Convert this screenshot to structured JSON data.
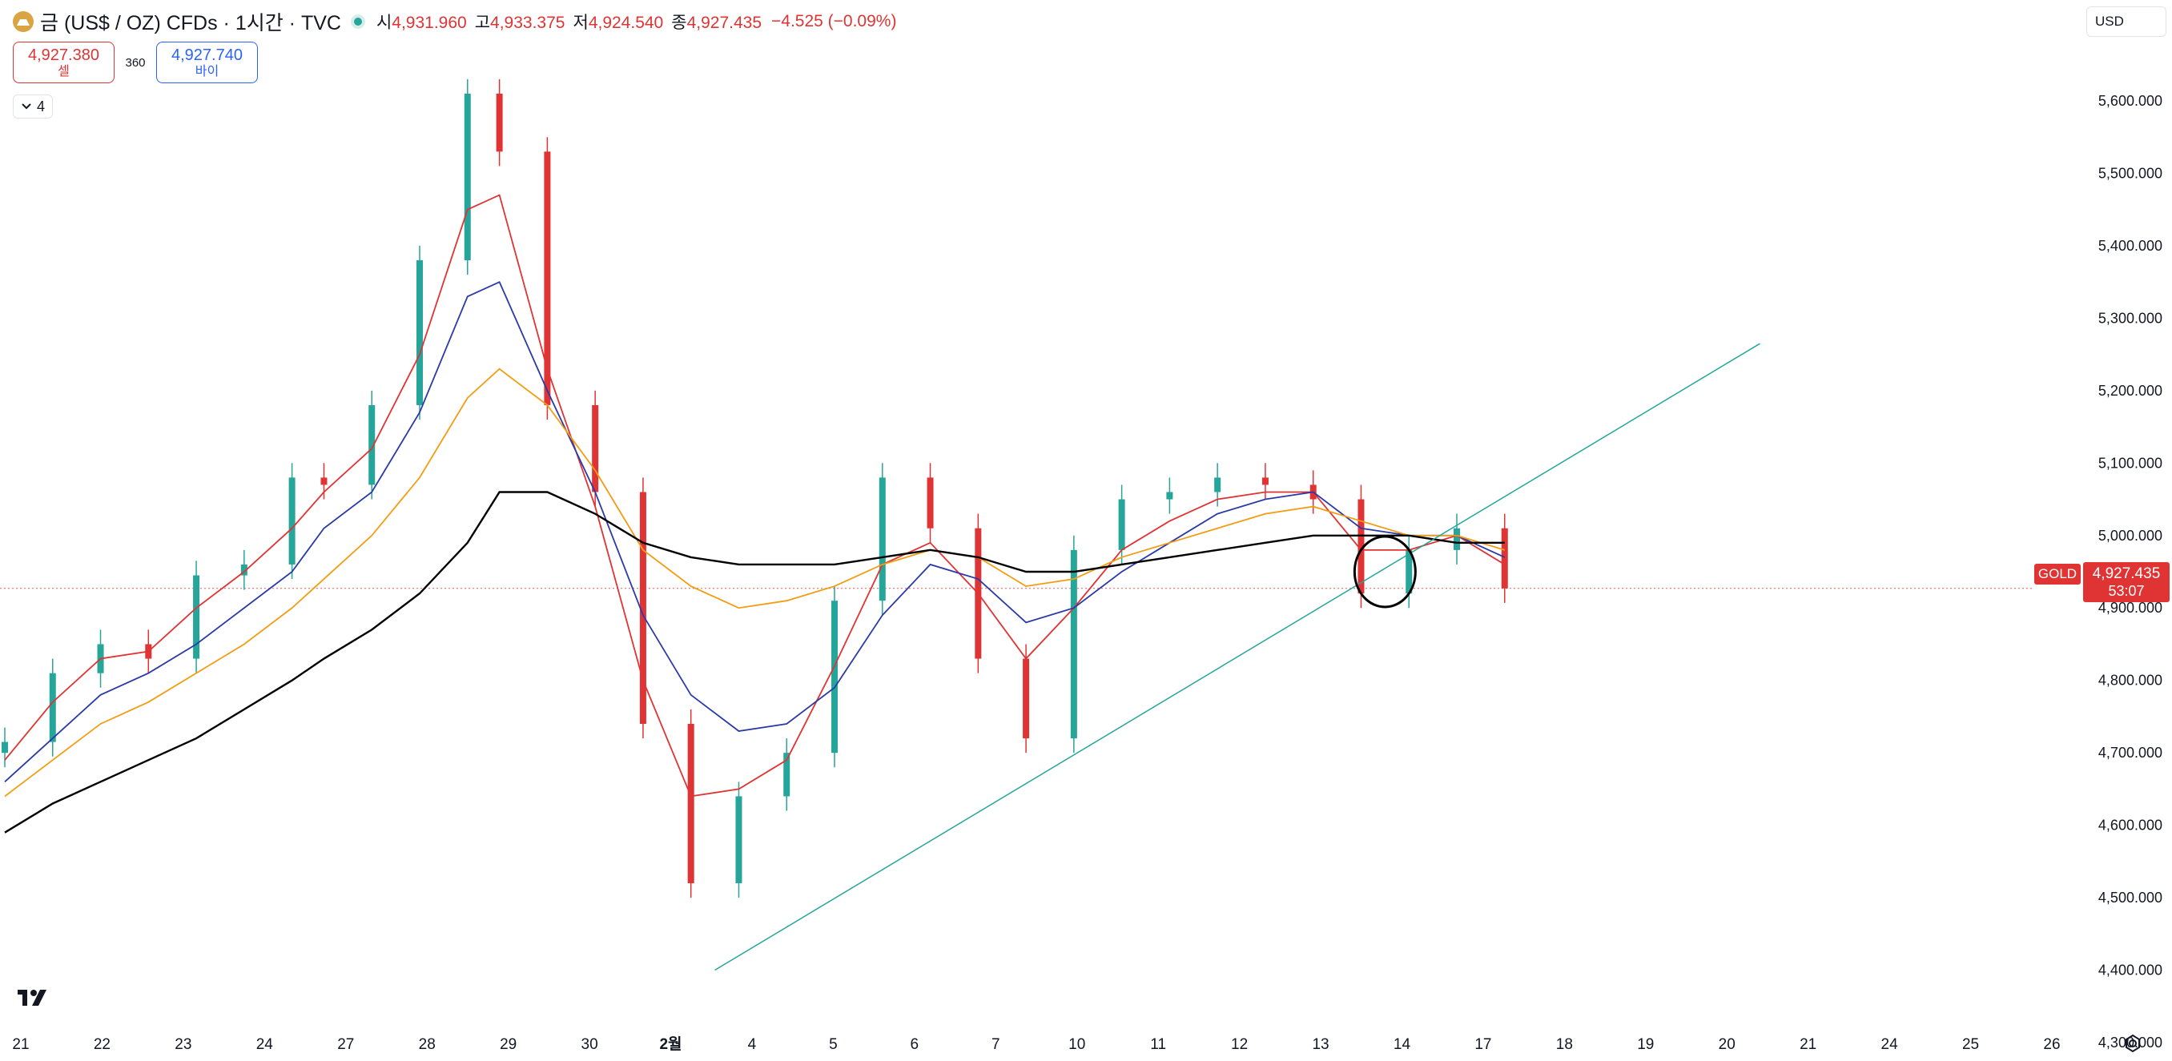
{
  "header": {
    "symbol_title": "금 (US$ / OZ) CFDs · 1시간 · TVC",
    "ohlc": [
      {
        "label": "시",
        "value": "4,931.960"
      },
      {
        "label": "고",
        "value": "4,933.375"
      },
      {
        "label": "저",
        "value": "4,924.540"
      },
      {
        "label": "종",
        "value": "4,927.435"
      }
    ],
    "change": "−4.525 (−0.09%)",
    "currency": "USD"
  },
  "trade": {
    "sell_price": "4,927.380",
    "sell_label": "셀",
    "spread": "360",
    "buy_price": "4,927.740",
    "buy_label": "바이"
  },
  "indicators_toggle": "4",
  "price_scale": {
    "symbol_tag": "GOLD",
    "last_price": "4,927.435",
    "countdown": "53:07",
    "labels": [
      "5,600.000",
      "5,500.000",
      "5,400.000",
      "5,300.000",
      "5,200.000",
      "5,100.000",
      "5,000.000",
      "4,900.000",
      "4,800.000",
      "4,700.000",
      "4,600.000",
      "4,500.000",
      "4,400.000",
      "4,300.000"
    ]
  },
  "time_scale": {
    "labels": [
      "21",
      "22",
      "23",
      "24",
      "27",
      "28",
      "29",
      "30",
      "2월",
      "4",
      "5",
      "6",
      "7",
      "10",
      "11",
      "12",
      "13",
      "14",
      "17",
      "18",
      "19",
      "20",
      "21",
      "24",
      "25",
      "26"
    ]
  },
  "colors": {
    "up": "#26a69a",
    "down": "#e03434",
    "ma_fast": "#e03434",
    "ma_mid": "#2a3aa8",
    "ma_slow": "#f39c12",
    "ma_long": "#000000",
    "trendline": "#26a69a"
  },
  "chart_data": {
    "type": "line",
    "title": "",
    "xlabel": "",
    "ylabel": "",
    "ylim": [
      4280,
      5680
    ],
    "x": [
      0,
      6,
      12,
      18,
      24,
      30,
      36,
      40,
      46,
      52,
      58,
      62,
      68,
      74,
      80,
      86,
      92,
      98,
      104,
      110,
      116,
      122,
      128,
      134,
      140,
      146,
      152,
      158,
      164,
      170,
      176,
      182,
      188
    ],
    "close": [
      4715,
      4810,
      4850,
      4830,
      4945,
      4960,
      5080,
      5070,
      5180,
      5380,
      5610,
      5530,
      5180,
      5060,
      4740,
      4520,
      4640,
      4700,
      4910,
      5080,
      5010,
      4830,
      4720,
      4980,
      5050,
      5060,
      5080,
      5070,
      5050,
      4920,
      4980,
      5010,
      4927
    ],
    "series": [
      {
        "name": "",
        "values": [
          4690,
          4770,
          4830,
          4840,
          4900,
          4950,
          5010,
          5060,
          5120,
          5250,
          5450,
          5470,
          5230,
          5040,
          4800,
          4640,
          4650,
          4690,
          4820,
          4960,
          4990,
          4920,
          4830,
          4900,
          4980,
          5020,
          5050,
          5060,
          5060,
          4980,
          4980,
          5000,
          4960
        ]
      },
      {
        "name": "",
        "values": [
          4660,
          4720,
          4780,
          4810,
          4850,
          4900,
          4950,
          5010,
          5060,
          5170,
          5330,
          5350,
          5200,
          5060,
          4890,
          4780,
          4730,
          4740,
          4790,
          4890,
          4960,
          4940,
          4880,
          4900,
          4950,
          4990,
          5030,
          5050,
          5060,
          5010,
          5000,
          5000,
          4970
        ]
      },
      {
        "name": "",
        "values": [
          4640,
          4690,
          4740,
          4770,
          4810,
          4850,
          4900,
          4940,
          5000,
          5080,
          5190,
          5230,
          5180,
          5090,
          4980,
          4930,
          4900,
          4910,
          4930,
          4960,
          4980,
          4970,
          4930,
          4940,
          4970,
          4990,
          5010,
          5030,
          5040,
          5020,
          5000,
          5000,
          4980
        ]
      },
      {
        "name": "",
        "values": [
          4590,
          4630,
          4660,
          4690,
          4720,
          4760,
          4800,
          4830,
          4870,
          4920,
          4990,
          5060,
          5060,
          5030,
          4990,
          4970,
          4960,
          4960,
          4960,
          4970,
          4980,
          4970,
          4950,
          4950,
          4960,
          4970,
          4980,
          4990,
          5000,
          5000,
          5000,
          4990,
          4990
        ]
      }
    ],
    "annotations": [
      {
        "type": "trendline",
        "from": {
          "x": 89,
          "y": 4400
        },
        "to": {
          "x": 220,
          "y": 5265
        }
      },
      {
        "type": "circle",
        "center": {
          "x": 173,
          "y": 4950
        }
      }
    ]
  }
}
